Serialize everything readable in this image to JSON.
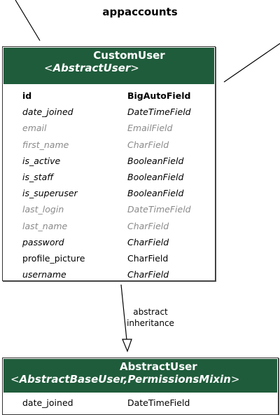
{
  "app": {
    "title": "appaccounts"
  },
  "custom_user": {
    "name": "CustomUser",
    "parents_prefix": "<",
    "parents": "AbstractUser",
    "parents_suffix": ">",
    "fields": [
      {
        "name": "id",
        "type": "BigAutoField",
        "style": "bold"
      },
      {
        "name": "date_joined",
        "type": "DateTimeField",
        "style": "italic"
      },
      {
        "name": "email",
        "type": "EmailField",
        "style": "gray"
      },
      {
        "name": "first_name",
        "type": "CharField",
        "style": "gray"
      },
      {
        "name": "is_active",
        "type": "BooleanField",
        "style": "italic"
      },
      {
        "name": "is_staff",
        "type": "BooleanField",
        "style": "italic"
      },
      {
        "name": "is_superuser",
        "type": "BooleanField",
        "style": "italic"
      },
      {
        "name": "last_login",
        "type": "DateTimeField",
        "style": "gray"
      },
      {
        "name": "last_name",
        "type": "CharField",
        "style": "gray"
      },
      {
        "name": "password",
        "type": "CharField",
        "style": "italic"
      },
      {
        "name": "profile_picture",
        "type": "CharField",
        "style": "plain"
      },
      {
        "name": "username",
        "type": "CharField",
        "style": "italic"
      }
    ]
  },
  "relation": {
    "line1": "abstract",
    "line2": "inheritance"
  },
  "abstract_user": {
    "name": "AbstractUser",
    "parents_prefix": "<",
    "parents": "AbstractBaseUser,PermissionsMixin",
    "parents_suffix": ">",
    "fields": [
      {
        "name": "date_joined",
        "type": "DateTimeField",
        "style": "plain"
      }
    ]
  },
  "colors": {
    "header_bg": "#1f5c3b",
    "header_text": "#ffffff",
    "gray_field": "#8a8a8a"
  }
}
